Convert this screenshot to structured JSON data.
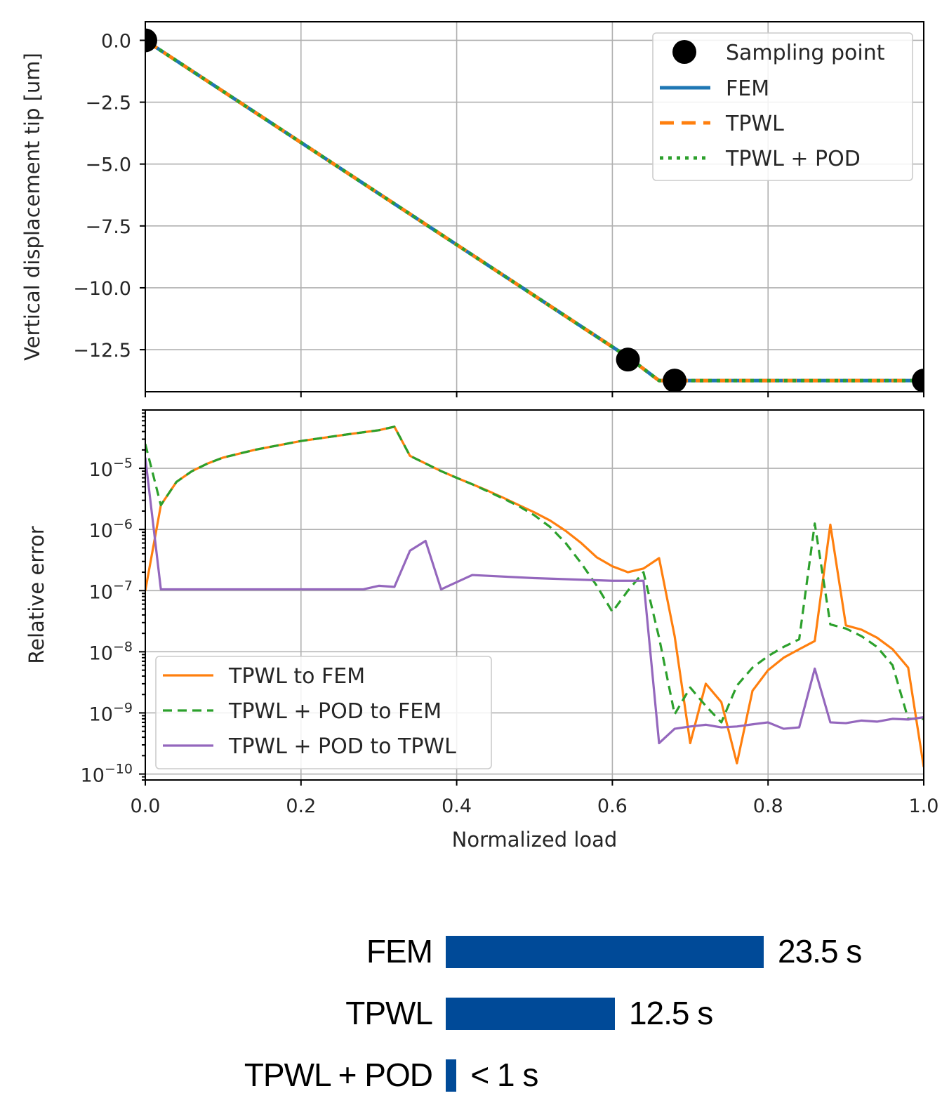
{
  "chart_data": [
    {
      "type": "line",
      "ylabel": "Vertical displacement tip [um]",
      "ylim": [
        -14.2,
        0.75
      ],
      "xlim": [
        0,
        1
      ],
      "yticks": [
        "0.0",
        "−2.5",
        "−5.0",
        "−7.5",
        "−10.0",
        "−12.5"
      ],
      "ytick_values": [
        0,
        -2.5,
        -5,
        -7.5,
        -10,
        -12.5
      ],
      "grid": true,
      "legend_position": "top-right",
      "series": [
        {
          "name": "FEM",
          "style": "solid",
          "color": "#1f77b4",
          "x": [
            0,
            0.62,
            0.66,
            1.0
          ],
          "y": [
            0,
            -12.8,
            -13.75,
            -13.75
          ]
        },
        {
          "name": "TPWL",
          "style": "dashed",
          "color": "#ff7f0e",
          "x": [
            0,
            0.62,
            0.66,
            1.0
          ],
          "y": [
            0,
            -12.8,
            -13.75,
            -13.75
          ]
        },
        {
          "name": "TPWL + POD",
          "style": "dotted",
          "color": "#2ca02c",
          "x": [
            0,
            0.62,
            0.66,
            1.0
          ],
          "y": [
            0,
            -12.8,
            -13.75,
            -13.75
          ]
        }
      ],
      "sampling_points": {
        "name": "Sampling point",
        "color": "#000000",
        "x": [
          0.0,
          0.62,
          0.68,
          1.0
        ],
        "y": [
          0.0,
          -12.9,
          -13.75,
          -13.75
        ]
      }
    },
    {
      "type": "line",
      "xlabel": "Normalized load",
      "ylabel": "Relative error",
      "yscale": "log",
      "ylim": [
        8e-11,
        9e-05
      ],
      "xlim": [
        0,
        1
      ],
      "xticks": [
        "0.0",
        "0.2",
        "0.4",
        "0.6",
        "0.8",
        "1.0"
      ],
      "xtick_values": [
        0,
        0.2,
        0.4,
        0.6,
        0.8,
        1.0
      ],
      "ytick_exponents": [
        "−5",
        "−6",
        "−7",
        "−8",
        "−9",
        "−10"
      ],
      "ytick_values": [
        1e-05,
        1e-06,
        1e-07,
        1e-08,
        1e-09,
        1e-10
      ],
      "ytick_base": "10",
      "grid": true,
      "legend_position": "lower-left",
      "series": [
        {
          "name": "TPWL to FEM",
          "style": "solid",
          "color": "#ff7f0e",
          "x": [
            0,
            0.02,
            0.04,
            0.06,
            0.08,
            0.1,
            0.14,
            0.2,
            0.26,
            0.3,
            0.32,
            0.34,
            0.36,
            0.38,
            0.4,
            0.42,
            0.44,
            0.46,
            0.48,
            0.5,
            0.52,
            0.54,
            0.56,
            0.58,
            0.6,
            0.62,
            0.64,
            0.66,
            0.68,
            0.7,
            0.72,
            0.74,
            0.76,
            0.78,
            0.8,
            0.82,
            0.84,
            0.86,
            0.88,
            0.9,
            0.92,
            0.94,
            0.96,
            0.98,
            1.0
          ],
          "y": [
            1e-07,
            2.5e-06,
            6e-06,
            9e-06,
            1.2e-05,
            1.5e-05,
            2e-05,
            2.8e-05,
            3.6e-05,
            4.2e-05,
            4.8e-05,
            1.6e-05,
            1.2e-05,
            9e-06,
            7e-06,
            5.5e-06,
            4.3e-06,
            3.3e-06,
            2.5e-06,
            1.9e-06,
            1.4e-06,
            9.5e-07,
            6e-07,
            3.5e-07,
            2.5e-07,
            2e-07,
            2.3e-07,
            3.4e-07,
            1.8e-08,
            3.2e-10,
            3e-09,
            1.5e-09,
            1.5e-10,
            2.3e-09,
            5e-09,
            8e-09,
            1.1e-08,
            1.5e-08,
            1.2e-06,
            2.7e-08,
            2.3e-08,
            1.7e-08,
            1.1e-08,
            5.5e-09,
            1.3e-10
          ]
        },
        {
          "name": "TPWL + POD to FEM",
          "style": "dashed",
          "color": "#2ca02c",
          "x": [
            0,
            0.02,
            0.04,
            0.06,
            0.08,
            0.1,
            0.14,
            0.2,
            0.26,
            0.3,
            0.32,
            0.34,
            0.36,
            0.38,
            0.4,
            0.42,
            0.44,
            0.46,
            0.48,
            0.5,
            0.52,
            0.54,
            0.56,
            0.58,
            0.6,
            0.62,
            0.64,
            0.66,
            0.68,
            0.7,
            0.72,
            0.74,
            0.76,
            0.78,
            0.8,
            0.82,
            0.84,
            0.86,
            0.88,
            0.9,
            0.92,
            0.94,
            0.96,
            0.98,
            1.0
          ],
          "y": [
            2.5e-05,
            2.5e-06,
            6e-06,
            9e-06,
            1.2e-05,
            1.5e-05,
            2e-05,
            2.8e-05,
            3.6e-05,
            4.2e-05,
            4.8e-05,
            1.6e-05,
            1.2e-05,
            9e-06,
            7e-06,
            5.5e-06,
            4.2e-06,
            3.2e-06,
            2.4e-06,
            1.7e-06,
            1.1e-06,
            6e-07,
            2.8e-07,
            1.2e-07,
            4.5e-08,
            1e-07,
            2e-07,
            1.7e-08,
            9.5e-10,
            2.6e-09,
            1.3e-09,
            7e-10,
            2.8e-09,
            5.5e-09,
            8.5e-09,
            1.2e-08,
            1.6e-08,
            1.25e-06,
            2.8e-08,
            2.4e-08,
            1.8e-08,
            1.2e-08,
            6e-09,
            8e-10,
            8e-10
          ]
        },
        {
          "name": "TPWL + POD to TPWL",
          "style": "solid",
          "color": "#9467bd",
          "x": [
            0,
            0.02,
            0.1,
            0.2,
            0.28,
            0.3,
            0.32,
            0.34,
            0.36,
            0.38,
            0.42,
            0.5,
            0.6,
            0.64,
            0.66,
            0.68,
            0.7,
            0.72,
            0.74,
            0.76,
            0.78,
            0.8,
            0.82,
            0.84,
            0.86,
            0.88,
            0.9,
            0.92,
            0.94,
            0.96,
            0.98,
            1.0
          ],
          "y": [
            1.5e-05,
            1.05e-07,
            1.05e-07,
            1.05e-07,
            1.05e-07,
            1.2e-07,
            1.15e-07,
            4.5e-07,
            6.5e-07,
            1.05e-07,
            1.8e-07,
            1.6e-07,
            1.45e-07,
            1.45e-07,
            3.2e-10,
            5.5e-10,
            6e-10,
            6.4e-10,
            5.8e-10,
            6e-10,
            6.5e-10,
            7e-10,
            5.5e-10,
            5.8e-10,
            5.3e-09,
            7e-10,
            6.8e-10,
            7.5e-10,
            7.2e-10,
            8e-10,
            7.8e-10,
            8.5e-10
          ]
        }
      ]
    },
    {
      "type": "bar",
      "orientation": "horizontal",
      "categories": [
        "FEM",
        "TPWL",
        "TPWL + POD"
      ],
      "values": [
        23.5,
        12.5,
        0.8
      ],
      "value_labels": [
        "23.5 s",
        "12.5 s",
        "< 1 s"
      ],
      "color": "#004a98"
    }
  ]
}
